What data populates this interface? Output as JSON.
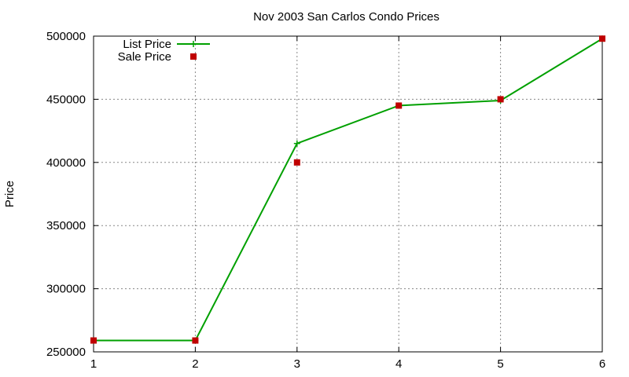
{
  "chart_data": {
    "type": "line",
    "title": "Nov 2003 San Carlos Condo Prices",
    "xlabel": "",
    "ylabel": "Price",
    "x": [
      1,
      2,
      3,
      4,
      5,
      6
    ],
    "xlim": [
      1,
      6
    ],
    "ylim": [
      250000,
      500000
    ],
    "xticks": [
      "1",
      "2",
      "3",
      "4",
      "5",
      "6"
    ],
    "yticks": [
      "250000",
      "300000",
      "350000",
      "400000",
      "450000",
      "500000"
    ],
    "grid": true,
    "legend_position": "top-left",
    "series": [
      {
        "name": "List Price",
        "type": "line",
        "marker": "plus",
        "color": "#00a000",
        "values": [
          259000,
          259000,
          415000,
          445000,
          449000,
          498000
        ]
      },
      {
        "name": "Sale Price",
        "type": "scatter",
        "marker": "square",
        "color": "#c00000",
        "values": [
          259000,
          259000,
          400000,
          445000,
          450000,
          498000
        ]
      }
    ]
  }
}
